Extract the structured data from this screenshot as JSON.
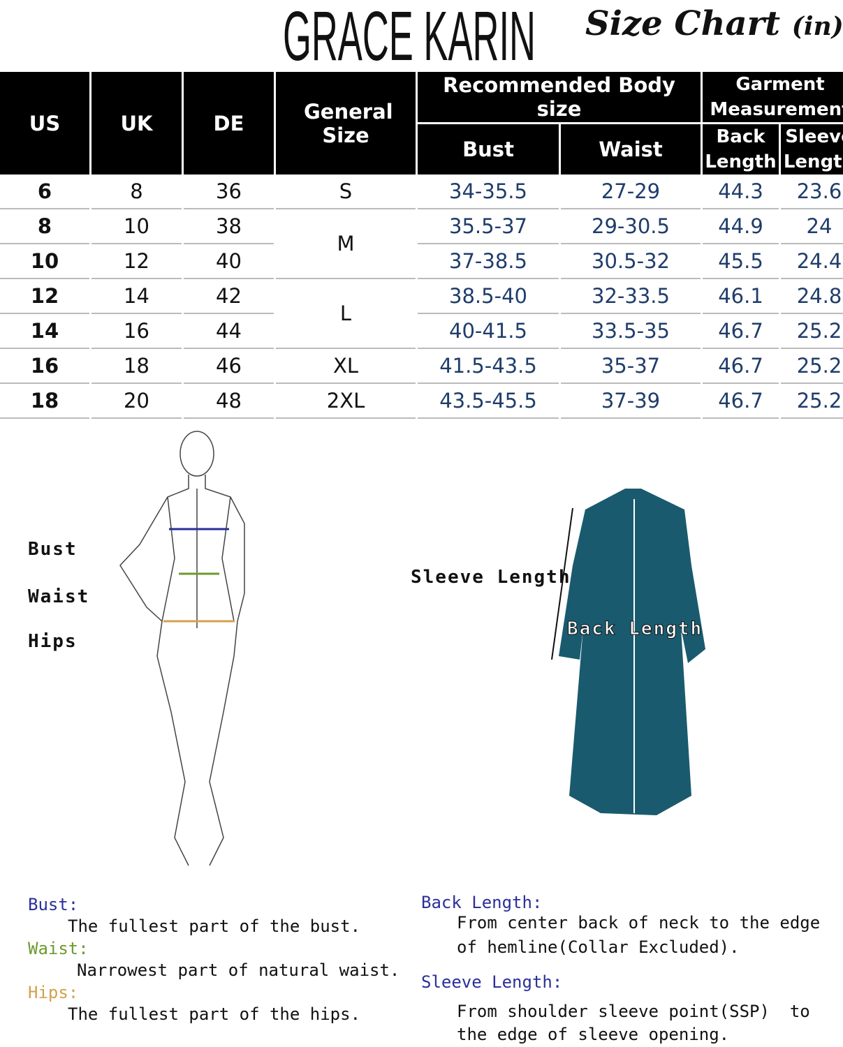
{
  "brand": "GRACE KARIN",
  "title": "Size Chart",
  "unit": "(in)",
  "headers": {
    "us": "US",
    "uk": "UK",
    "de": "DE",
    "general": "General Size",
    "recommended": "Recommended Body size",
    "bust": "Bust",
    "waist": "Waist",
    "garment": "Garment Measurement",
    "back_length": "Back Length",
    "sleeve_length": "Sleeve Length"
  },
  "rows": [
    {
      "us": "6",
      "uk": "8",
      "de": "36",
      "general": "S",
      "bust": "34-35.5",
      "waist": "27-29",
      "back": "44.3",
      "sleeve": "23.6"
    },
    {
      "us": "8",
      "uk": "10",
      "de": "38",
      "general": "M",
      "bust": "35.5-37",
      "waist": "29-30.5",
      "back": "44.9",
      "sleeve": "24"
    },
    {
      "us": "10",
      "uk": "12",
      "de": "40",
      "bust": "37-38.5",
      "waist": "30.5-32",
      "back": "45.5",
      "sleeve": "24.4"
    },
    {
      "us": "12",
      "uk": "14",
      "de": "42",
      "general": "L",
      "bust": "38.5-40",
      "waist": "32-33.5",
      "back": "46.1",
      "sleeve": "24.8"
    },
    {
      "us": "14",
      "uk": "16",
      "de": "44",
      "bust": "40-41.5",
      "waist": "33.5-35",
      "back": "46.7",
      "sleeve": "25.2"
    },
    {
      "us": "16",
      "uk": "18",
      "de": "46",
      "general": "XL",
      "bust": "41.5-43.5",
      "waist": "35-37",
      "back": "46.7",
      "sleeve": "25.2"
    },
    {
      "us": "18",
      "uk": "20",
      "de": "48",
      "general": "2XL",
      "bust": "43.5-45.5",
      "waist": "37-39",
      "back": "46.7",
      "sleeve": "25.2"
    }
  ],
  "body_labels": {
    "bust": "Bust",
    "waist": "Waist",
    "hips": "Hips"
  },
  "dress_labels": {
    "sleeve": "Sleeve Length",
    "back": "Back Length"
  },
  "definitions": {
    "bust_term": "Bust:",
    "bust_text": "The fullest part of the bust.",
    "waist_term": "Waist:",
    "waist_text": "Narrowest part of natural waist.",
    "hips_term": "Hips:",
    "hips_text": "The fullest part of the hips.",
    "back_term": "Back Length:",
    "back_text1": "From center back of neck to the edge",
    "back_text2": "of hemline(Collar Excluded).",
    "sleeve_term": "Sleeve Length:",
    "sleeve_text1": "From shoulder sleeve point(SSP)  to",
    "sleeve_text2": "the edge of sleeve opening."
  },
  "colors": {
    "bust": "#2b2f9a",
    "waist": "#6d9a2e",
    "hips": "#d2a24c",
    "measure_text": "#1f3d6b",
    "dress": "#1a5a6e"
  }
}
